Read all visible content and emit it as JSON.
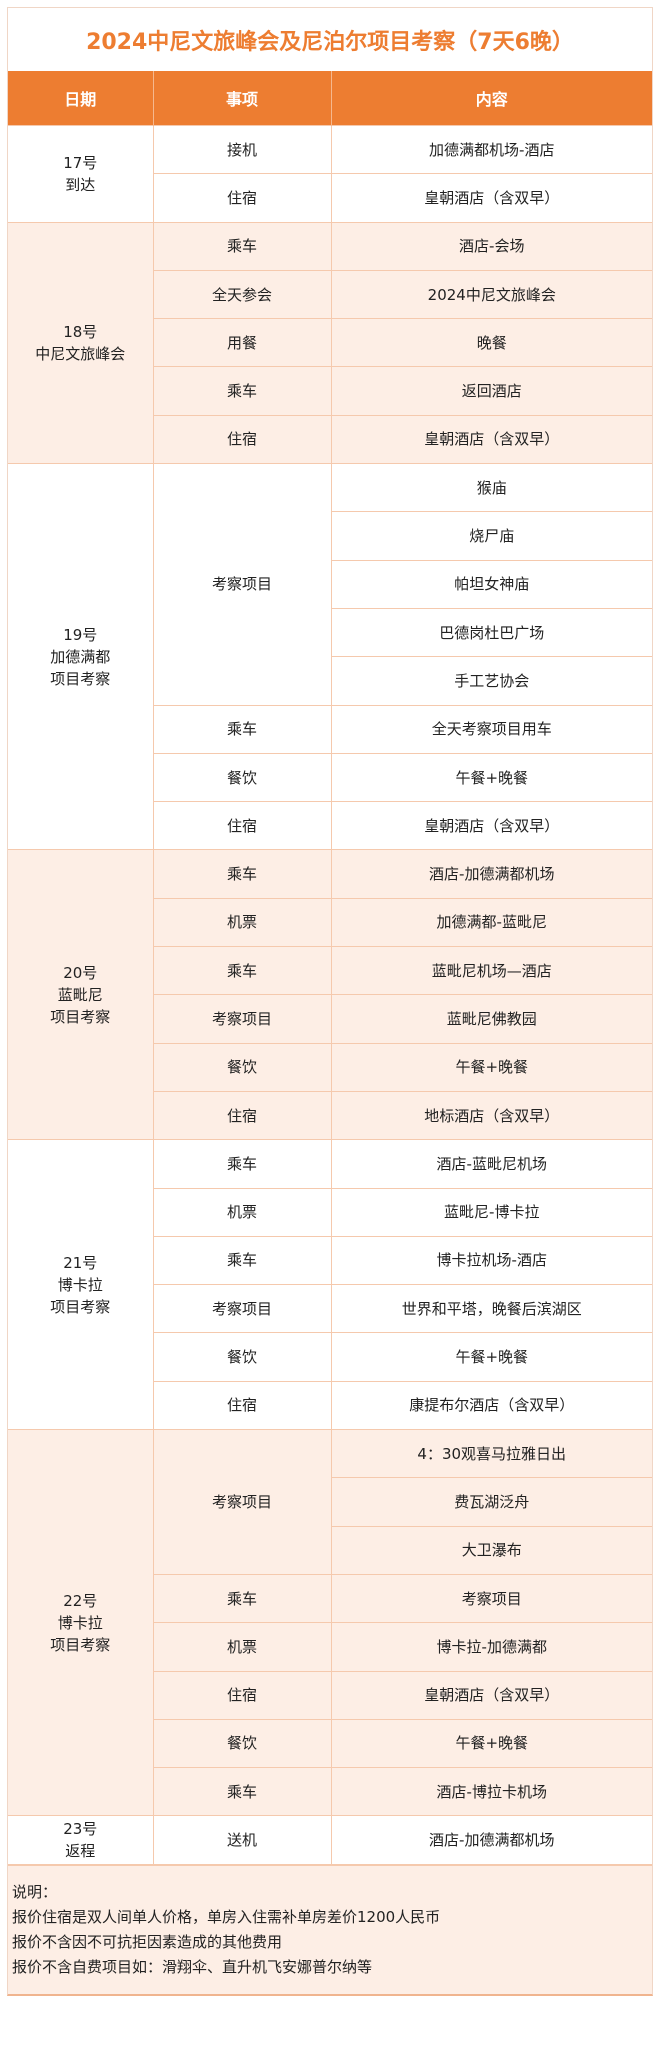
{
  "title": "2024中尼文旅峰会及尼泊尔项目考察（7天6晚）",
  "colors": {
    "accent": "#ed7d31",
    "row_alt": "#fdeee5",
    "border": "#f5c9ad"
  },
  "headers": [
    "日期",
    "事项",
    "内容"
  ],
  "days": [
    {
      "date": "17号",
      "label": "到达",
      "items": [
        {
          "item": "接机",
          "contents": [
            "加德满都机场-酒店"
          ]
        },
        {
          "item": "住宿",
          "contents": [
            "皇朝酒店（含双早）"
          ]
        }
      ]
    },
    {
      "date": "18号",
      "label": "中尼文旅峰会",
      "items": [
        {
          "item": "乘车",
          "contents": [
            "酒店-会场"
          ]
        },
        {
          "item": "全天参会",
          "contents": [
            "2024中尼文旅峰会"
          ]
        },
        {
          "item": "用餐",
          "contents": [
            "晚餐"
          ]
        },
        {
          "item": "乘车",
          "contents": [
            "返回酒店"
          ]
        },
        {
          "item": "住宿",
          "contents": [
            "皇朝酒店（含双早）"
          ]
        }
      ]
    },
    {
      "date": "19号",
      "label": "加德满都\n项目考察",
      "items": [
        {
          "item": "考察项目",
          "contents": [
            "猴庙",
            "烧尸庙",
            "帕坦女神庙",
            "巴德岗杜巴广场",
            "手工艺协会"
          ]
        },
        {
          "item": "乘车",
          "contents": [
            "全天考察项目用车"
          ]
        },
        {
          "item": "餐饮",
          "contents": [
            "午餐+晚餐"
          ]
        },
        {
          "item": "住宿",
          "contents": [
            "皇朝酒店（含双早）"
          ]
        }
      ]
    },
    {
      "date": "20号",
      "label": "蓝毗尼\n项目考察",
      "items": [
        {
          "item": "乘车",
          "contents": [
            "酒店-加德满都机场"
          ]
        },
        {
          "item": "机票",
          "contents": [
            "加德满都-蓝毗尼"
          ]
        },
        {
          "item": "乘车",
          "contents": [
            "蓝毗尼机场—酒店"
          ]
        },
        {
          "item": "考察项目",
          "contents": [
            "蓝毗尼佛教园"
          ]
        },
        {
          "item": "餐饮",
          "contents": [
            "午餐+晚餐"
          ]
        },
        {
          "item": "住宿",
          "contents": [
            "地标酒店（含双早）"
          ]
        }
      ]
    },
    {
      "date": "21号",
      "label": "博卡拉\n项目考察",
      "items": [
        {
          "item": "乘车",
          "contents": [
            "酒店-蓝毗尼机场"
          ]
        },
        {
          "item": "机票",
          "contents": [
            "蓝毗尼-博卡拉"
          ]
        },
        {
          "item": "乘车",
          "contents": [
            "博卡拉机场-酒店"
          ]
        },
        {
          "item": "考察项目",
          "contents": [
            "世界和平塔，晚餐后滨湖区"
          ]
        },
        {
          "item": "餐饮",
          "contents": [
            "午餐+晚餐"
          ]
        },
        {
          "item": "住宿",
          "contents": [
            "康提布尔酒店（含双早）"
          ]
        }
      ]
    },
    {
      "date": "22号",
      "label": "博卡拉\n项目考察",
      "items": [
        {
          "item": "考察项目",
          "contents": [
            "4：30观喜马拉雅日出",
            "费瓦湖泛舟",
            "大卫瀑布"
          ]
        },
        {
          "item": "乘车",
          "contents": [
            "考察项目"
          ]
        },
        {
          "item": "机票",
          "contents": [
            "博卡拉-加德满都"
          ]
        },
        {
          "item": "住宿",
          "contents": [
            "皇朝酒店（含双早）"
          ]
        },
        {
          "item": "餐饮",
          "contents": [
            "午餐+晚餐"
          ]
        },
        {
          "item": "乘车",
          "contents": [
            "酒店-博拉卡机场"
          ]
        }
      ]
    },
    {
      "date": "23号",
      "label": "返程",
      "items": [
        {
          "item": "送机",
          "contents": [
            "酒店-加德满都机场"
          ]
        }
      ]
    }
  ],
  "notes": [
    "说明：",
    "报价住宿是双人间单人价格，单房入住需补单房差价1200人民币",
    "报价不含因不可抗拒因素造成的其他费用",
    "报价不含自费项目如：滑翔伞、直升机飞安娜普尔纳等"
  ]
}
